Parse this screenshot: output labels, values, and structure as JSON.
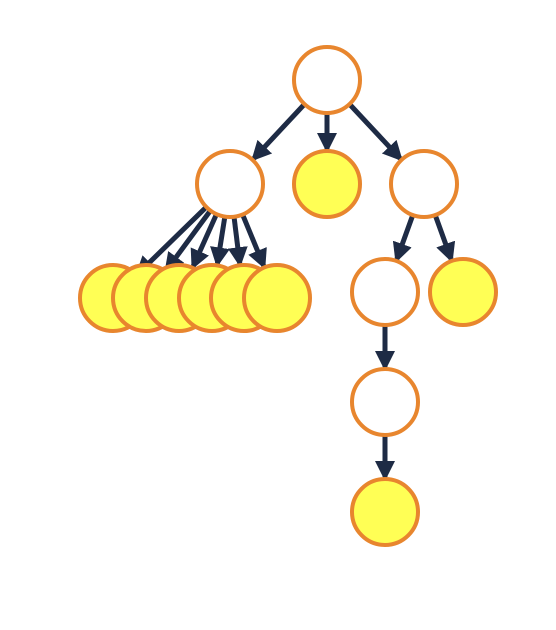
{
  "diagram": {
    "type": "tree",
    "colors": {
      "node_outline": "#e8862e",
      "internal_fill": "#ffffff",
      "leaf_fill": "#ffff55",
      "edge": "#1e2b45",
      "background": "#ffffff"
    },
    "nodes": [
      {
        "id": "root",
        "kind": "internal"
      },
      {
        "id": "a",
        "kind": "internal"
      },
      {
        "id": "b",
        "kind": "leaf"
      },
      {
        "id": "c",
        "kind": "internal"
      },
      {
        "id": "a1",
        "kind": "leaf"
      },
      {
        "id": "a2",
        "kind": "leaf"
      },
      {
        "id": "a3",
        "kind": "leaf"
      },
      {
        "id": "a4",
        "kind": "leaf"
      },
      {
        "id": "a5",
        "kind": "leaf"
      },
      {
        "id": "a6",
        "kind": "leaf"
      },
      {
        "id": "c1",
        "kind": "internal"
      },
      {
        "id": "c2",
        "kind": "leaf"
      },
      {
        "id": "c1a",
        "kind": "internal"
      },
      {
        "id": "c1a1",
        "kind": "leaf"
      }
    ],
    "edges": [
      [
        "root",
        "a"
      ],
      [
        "root",
        "b"
      ],
      [
        "root",
        "c"
      ],
      [
        "a",
        "a1"
      ],
      [
        "a",
        "a2"
      ],
      [
        "a",
        "a3"
      ],
      [
        "a",
        "a4"
      ],
      [
        "a",
        "a5"
      ],
      [
        "a",
        "a6"
      ],
      [
        "c",
        "c1"
      ],
      [
        "c",
        "c2"
      ],
      [
        "c1",
        "c1a"
      ],
      [
        "c1a",
        "c1a1"
      ]
    ]
  }
}
